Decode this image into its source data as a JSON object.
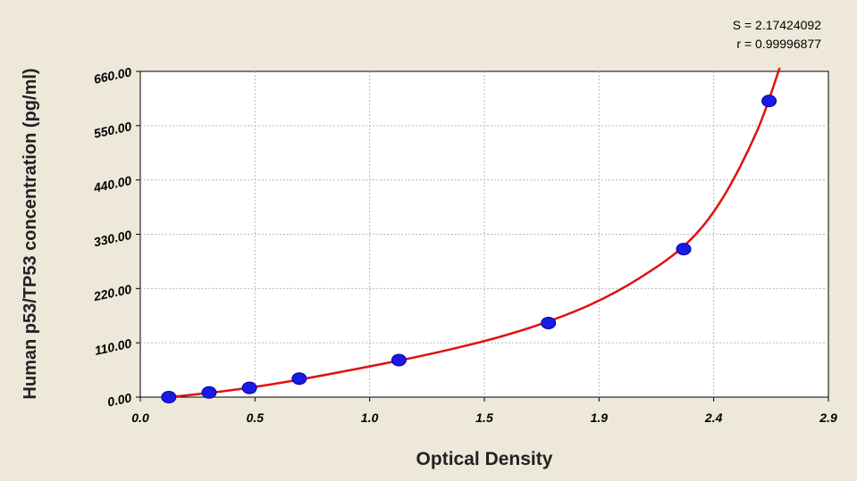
{
  "annotations": {
    "s_text": "S = 2.17424092",
    "r_text": "r = 0.99996877"
  },
  "chart_data": {
    "type": "scatter",
    "xlabel": "Optical Density",
    "ylabel": "Human p53/TP53 concentration (pg/ml)",
    "xlim": [
      0.0,
      2.9
    ],
    "ylim": [
      0.0,
      660.0
    ],
    "x_ticks": [
      "0.0",
      "0.5",
      "1.0",
      "1.5",
      "1.9",
      "2.4",
      "2.9"
    ],
    "y_ticks": [
      "0.00",
      "110.00",
      "220.00",
      "330.00",
      "440.00",
      "550.00",
      "660.00"
    ],
    "grid": true,
    "series": [
      {
        "kind": "points",
        "color": "#1a1ae6",
        "x": [
          0.12,
          0.29,
          0.46,
          0.67,
          1.09,
          1.72,
          2.29,
          2.65
        ],
        "y": [
          0,
          9.4,
          18.8,
          37.5,
          75,
          150,
          300,
          600
        ]
      },
      {
        "kind": "fitted-curve",
        "color": "#e01010",
        "x": [
          0.12,
          0.3,
          0.5,
          0.7,
          0.9,
          1.1,
          1.3,
          1.5,
          1.7,
          1.9,
          2.1,
          2.3,
          2.45,
          2.6,
          2.7
        ],
        "y": [
          0,
          9,
          22,
          38,
          56,
          75,
          96,
          120,
          150,
          188,
          240,
          310,
          400,
          540,
          675
        ]
      }
    ]
  }
}
